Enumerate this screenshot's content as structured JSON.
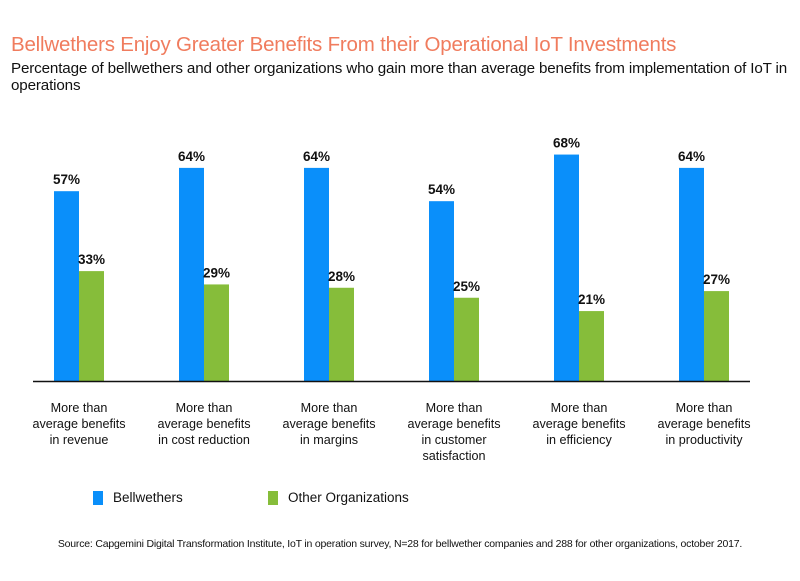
{
  "chart_data": {
    "type": "bar",
    "title": "Bellwethers Enjoy Greater Benefits From their Operational IoT Investments",
    "subtitle": "Percentage of bellwethers and other organizations who gain more than average benefits from implementation of IoT in operations",
    "categories": [
      [
        "More than",
        "average benefits",
        "in revenue"
      ],
      [
        "More than",
        "average benefits",
        "in cost reduction"
      ],
      [
        "More than",
        "average benefits",
        "in margins"
      ],
      [
        "More than",
        "average benefits",
        "in customer",
        "satisfaction"
      ],
      [
        "More than",
        "average benefits",
        "in efficiency"
      ],
      [
        "More than",
        "average benefits",
        "in productivity"
      ]
    ],
    "series": [
      {
        "name": "Bellwethers",
        "color": "#0a8ffa",
        "values": [
          57,
          64,
          64,
          54,
          68,
          64
        ]
      },
      {
        "name": "Other Organizations",
        "color": "#86bd3a",
        "values": [
          33,
          29,
          28,
          25,
          21,
          27
        ]
      }
    ],
    "value_suffix": "%",
    "xlabel": "",
    "ylabel": "",
    "ylim": [
      0,
      100
    ],
    "grid": false,
    "legend_position": "bottom-left",
    "source": "Source: Capgemini Digital Transformation Institute, IoT in operation survey, N=28 for bellwether companies and 288 for other organizations, october 2017."
  }
}
